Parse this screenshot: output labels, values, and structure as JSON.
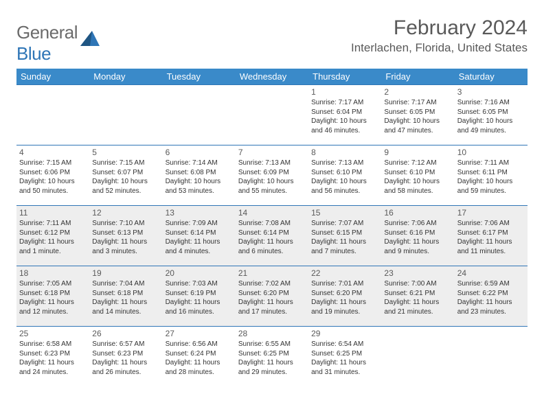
{
  "brand": {
    "general": "General",
    "blue": "Blue"
  },
  "title": "February 2024",
  "location": "Interlachen, Florida, United States",
  "header_bg": "#3a8ac9",
  "header_text_color": "#ffffff",
  "title_color": "#595959",
  "rule_color": "#2e75b6",
  "shade_color": "#eeeeee",
  "day_headers": [
    "Sunday",
    "Monday",
    "Tuesday",
    "Wednesday",
    "Thursday",
    "Friday",
    "Saturday"
  ],
  "weeks": [
    {
      "shaded": false,
      "days": [
        null,
        null,
        null,
        null,
        {
          "n": "1",
          "sunrise": "7:17 AM",
          "sunset": "6:04 PM",
          "daylight": "10 hours and 46 minutes."
        },
        {
          "n": "2",
          "sunrise": "7:17 AM",
          "sunset": "6:05 PM",
          "daylight": "10 hours and 47 minutes."
        },
        {
          "n": "3",
          "sunrise": "7:16 AM",
          "sunset": "6:05 PM",
          "daylight": "10 hours and 49 minutes."
        }
      ]
    },
    {
      "shaded": false,
      "days": [
        {
          "n": "4",
          "sunrise": "7:15 AM",
          "sunset": "6:06 PM",
          "daylight": "10 hours and 50 minutes."
        },
        {
          "n": "5",
          "sunrise": "7:15 AM",
          "sunset": "6:07 PM",
          "daylight": "10 hours and 52 minutes."
        },
        {
          "n": "6",
          "sunrise": "7:14 AM",
          "sunset": "6:08 PM",
          "daylight": "10 hours and 53 minutes."
        },
        {
          "n": "7",
          "sunrise": "7:13 AM",
          "sunset": "6:09 PM",
          "daylight": "10 hours and 55 minutes."
        },
        {
          "n": "8",
          "sunrise": "7:13 AM",
          "sunset": "6:10 PM",
          "daylight": "10 hours and 56 minutes."
        },
        {
          "n": "9",
          "sunrise": "7:12 AM",
          "sunset": "6:10 PM",
          "daylight": "10 hours and 58 minutes."
        },
        {
          "n": "10",
          "sunrise": "7:11 AM",
          "sunset": "6:11 PM",
          "daylight": "10 hours and 59 minutes."
        }
      ]
    },
    {
      "shaded": true,
      "days": [
        {
          "n": "11",
          "sunrise": "7:11 AM",
          "sunset": "6:12 PM",
          "daylight": "11 hours and 1 minute."
        },
        {
          "n": "12",
          "sunrise": "7:10 AM",
          "sunset": "6:13 PM",
          "daylight": "11 hours and 3 minutes."
        },
        {
          "n": "13",
          "sunrise": "7:09 AM",
          "sunset": "6:14 PM",
          "daylight": "11 hours and 4 minutes."
        },
        {
          "n": "14",
          "sunrise": "7:08 AM",
          "sunset": "6:14 PM",
          "daylight": "11 hours and 6 minutes."
        },
        {
          "n": "15",
          "sunrise": "7:07 AM",
          "sunset": "6:15 PM",
          "daylight": "11 hours and 7 minutes."
        },
        {
          "n": "16",
          "sunrise": "7:06 AM",
          "sunset": "6:16 PM",
          "daylight": "11 hours and 9 minutes."
        },
        {
          "n": "17",
          "sunrise": "7:06 AM",
          "sunset": "6:17 PM",
          "daylight": "11 hours and 11 minutes."
        }
      ]
    },
    {
      "shaded": true,
      "days": [
        {
          "n": "18",
          "sunrise": "7:05 AM",
          "sunset": "6:18 PM",
          "daylight": "11 hours and 12 minutes."
        },
        {
          "n": "19",
          "sunrise": "7:04 AM",
          "sunset": "6:18 PM",
          "daylight": "11 hours and 14 minutes."
        },
        {
          "n": "20",
          "sunrise": "7:03 AM",
          "sunset": "6:19 PM",
          "daylight": "11 hours and 16 minutes."
        },
        {
          "n": "21",
          "sunrise": "7:02 AM",
          "sunset": "6:20 PM",
          "daylight": "11 hours and 17 minutes."
        },
        {
          "n": "22",
          "sunrise": "7:01 AM",
          "sunset": "6:20 PM",
          "daylight": "11 hours and 19 minutes."
        },
        {
          "n": "23",
          "sunrise": "7:00 AM",
          "sunset": "6:21 PM",
          "daylight": "11 hours and 21 minutes."
        },
        {
          "n": "24",
          "sunrise": "6:59 AM",
          "sunset": "6:22 PM",
          "daylight": "11 hours and 23 minutes."
        }
      ]
    },
    {
      "shaded": false,
      "days": [
        {
          "n": "25",
          "sunrise": "6:58 AM",
          "sunset": "6:23 PM",
          "daylight": "11 hours and 24 minutes."
        },
        {
          "n": "26",
          "sunrise": "6:57 AM",
          "sunset": "6:23 PM",
          "daylight": "11 hours and 26 minutes."
        },
        {
          "n": "27",
          "sunrise": "6:56 AM",
          "sunset": "6:24 PM",
          "daylight": "11 hours and 28 minutes."
        },
        {
          "n": "28",
          "sunrise": "6:55 AM",
          "sunset": "6:25 PM",
          "daylight": "11 hours and 29 minutes."
        },
        {
          "n": "29",
          "sunrise": "6:54 AM",
          "sunset": "6:25 PM",
          "daylight": "11 hours and 31 minutes."
        },
        null,
        null
      ]
    }
  ],
  "labels": {
    "sunrise": "Sunrise:",
    "sunset": "Sunset:",
    "daylight": "Daylight:"
  }
}
